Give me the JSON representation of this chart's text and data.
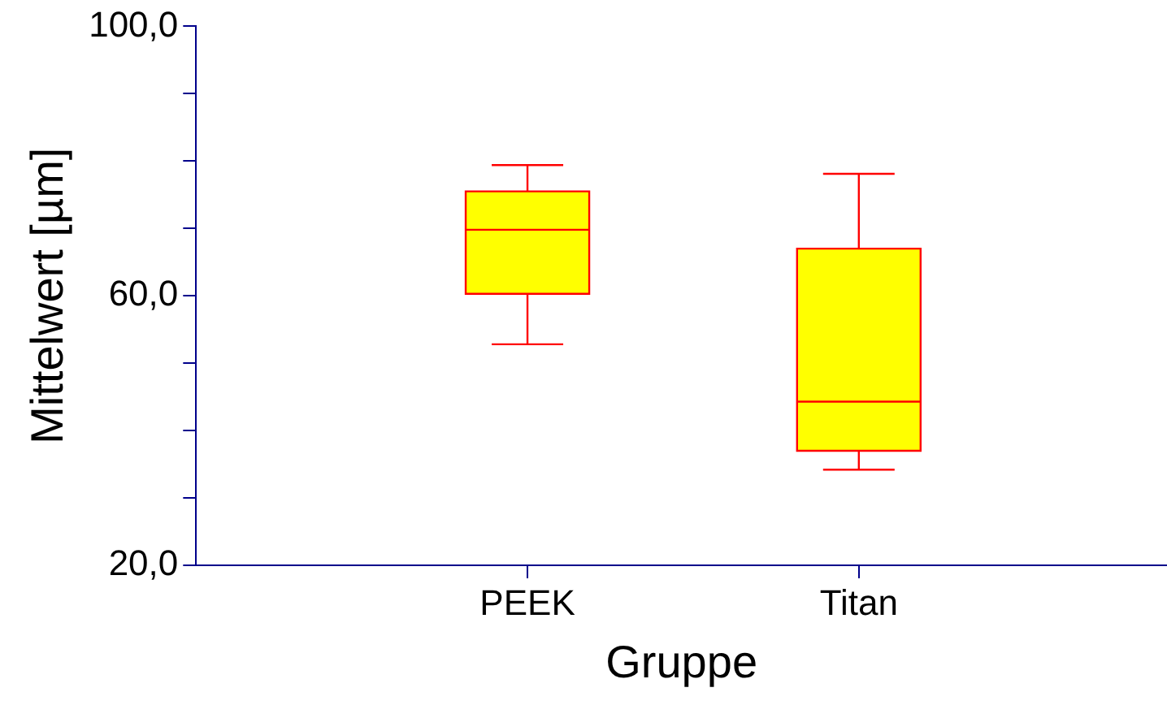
{
  "chart_data": {
    "type": "box",
    "xlabel": "Gruppe",
    "ylabel": "Mittelwert [µm]",
    "categories": [
      "PEEK",
      "Titan"
    ],
    "color": "#ffff00",
    "boxes": [
      {
        "low": 52.8,
        "q1": 60.3,
        "median": 69.8,
        "q3": 75.5,
        "high": 79.4
      },
      {
        "low": 34.2,
        "q1": 37.0,
        "median": 44.3,
        "q3": 67.0,
        "high": 78.1
      }
    ],
    "ylim": [
      20,
      100
    ],
    "yticks": [
      {
        "value": 20,
        "label": "20,0"
      },
      {
        "value": 30,
        "label": null
      },
      {
        "value": 40,
        "label": null
      },
      {
        "value": 50,
        "label": null
      },
      {
        "value": 60,
        "label": "60,0"
      },
      {
        "value": 70,
        "label": null
      },
      {
        "value": 80,
        "label": null
      },
      {
        "value": 90,
        "label": null
      },
      {
        "value": 100,
        "label": "100,0"
      }
    ],
    "grid": false,
    "legend": false
  }
}
